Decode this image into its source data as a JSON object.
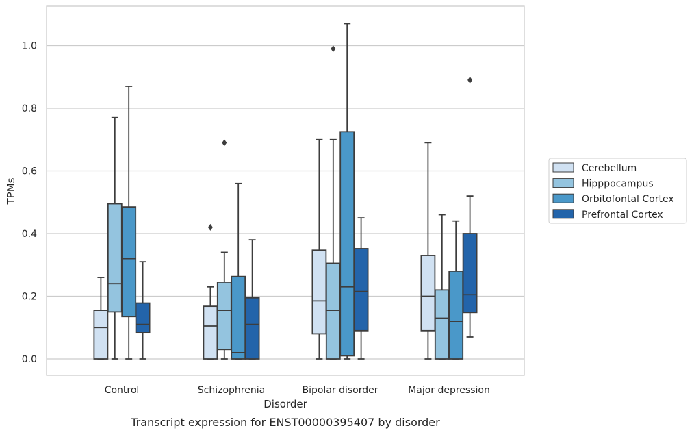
{
  "chart_data": {
    "type": "box",
    "caption": "Transcript expression for ENST00000395407 by disorder",
    "xlabel": "Disorder",
    "ylabel": "TPMs",
    "ylim": [
      -0.05,
      1.125
    ],
    "yticks": [
      0.0,
      0.2,
      0.4,
      0.6,
      0.8,
      1.0
    ],
    "ytick_labels": [
      "0.0",
      "0.2",
      "0.4",
      "0.6",
      "0.8",
      "1.0"
    ],
    "grid": "horizontal",
    "legend_position": "right",
    "categories": [
      "Control",
      "Schizophrenia",
      "Bipolar disorder",
      "Major depression"
    ],
    "series": [
      {
        "name": "Cerebellum",
        "color": "#d0e1f2",
        "boxes": [
          {
            "whisker_low": 0.0,
            "q1": 0.0,
            "median": 0.1,
            "q3": 0.155,
            "whisker_high": 0.26,
            "outliers": []
          },
          {
            "whisker_low": 0.0,
            "q1": 0.0,
            "median": 0.105,
            "q3": 0.168,
            "whisker_high": 0.23,
            "outliers": [
              0.42
            ]
          },
          {
            "whisker_low": 0.0,
            "q1": 0.08,
            "median": 0.185,
            "q3": 0.347,
            "whisker_high": 0.7,
            "outliers": []
          },
          {
            "whisker_low": 0.0,
            "q1": 0.09,
            "median": 0.2,
            "q3": 0.33,
            "whisker_high": 0.69,
            "outliers": []
          }
        ]
      },
      {
        "name": "Hipppocampus",
        "color": "#94c4df",
        "boxes": [
          {
            "whisker_low": 0.0,
            "q1": 0.15,
            "median": 0.24,
            "q3": 0.495,
            "whisker_high": 0.77,
            "outliers": []
          },
          {
            "whisker_low": 0.0,
            "q1": 0.03,
            "median": 0.155,
            "q3": 0.245,
            "whisker_high": 0.34,
            "outliers": [
              0.69
            ]
          },
          {
            "whisker_low": 0.0,
            "q1": 0.0,
            "median": 0.155,
            "q3": 0.305,
            "whisker_high": 0.7,
            "outliers": [
              0.99
            ]
          },
          {
            "whisker_low": 0.0,
            "q1": 0.0,
            "median": 0.13,
            "q3": 0.22,
            "whisker_high": 0.46,
            "outliers": []
          }
        ]
      },
      {
        "name": "Orbitofontal Cortex",
        "color": "#4a98c9",
        "boxes": [
          {
            "whisker_low": 0.0,
            "q1": 0.135,
            "median": 0.32,
            "q3": 0.485,
            "whisker_high": 0.87,
            "outliers": []
          },
          {
            "whisker_low": 0.0,
            "q1": 0.0,
            "median": 0.02,
            "q3": 0.263,
            "whisker_high": 0.56,
            "outliers": []
          },
          {
            "whisker_low": 0.0,
            "q1": 0.01,
            "median": 0.23,
            "q3": 0.725,
            "whisker_high": 1.07,
            "outliers": []
          },
          {
            "whisker_low": 0.0,
            "q1": 0.0,
            "median": 0.12,
            "q3": 0.28,
            "whisker_high": 0.44,
            "outliers": []
          }
        ]
      },
      {
        "name": "Prefrontal Cortex",
        "color": "#2364aa",
        "boxes": [
          {
            "whisker_low": 0.0,
            "q1": 0.085,
            "median": 0.11,
            "q3": 0.178,
            "whisker_high": 0.31,
            "outliers": []
          },
          {
            "whisker_low": 0.0,
            "q1": 0.0,
            "median": 0.11,
            "q3": 0.195,
            "whisker_high": 0.38,
            "outliers": []
          },
          {
            "whisker_low": 0.0,
            "q1": 0.09,
            "median": 0.215,
            "q3": 0.352,
            "whisker_high": 0.45,
            "outliers": []
          },
          {
            "whisker_low": 0.07,
            "q1": 0.148,
            "median": 0.205,
            "q3": 0.4,
            "whisker_high": 0.52,
            "outliers": [
              0.89
            ]
          }
        ]
      }
    ]
  }
}
